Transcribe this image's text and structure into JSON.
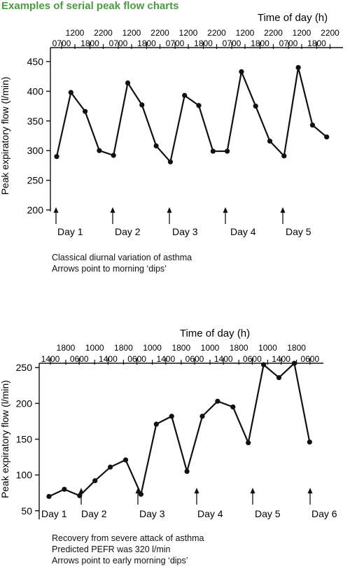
{
  "page_title": "Examples of serial peak flow charts",
  "chart_data": [
    {
      "type": "line",
      "top_axis_title": "Time of day (h)",
      "ylabel": "Peak expiratory flow (l/min)",
      "ylim": [
        200,
        450
      ],
      "yticks": [
        200,
        250,
        300,
        350,
        400,
        450
      ],
      "time_ticks_upper": [
        "1200",
        "2200",
        "1200",
        "2200",
        "1200",
        "2200",
        "1200",
        "2200",
        "1200",
        "2200"
      ],
      "time_ticks_lower": [
        "0700",
        "1800",
        "0700",
        "1800",
        "0700",
        "1800",
        "0700",
        "1800",
        "0700",
        "1800"
      ],
      "values": [
        290,
        398,
        366,
        300,
        292,
        414,
        377,
        308,
        281,
        393,
        376,
        299,
        299,
        433,
        375,
        316,
        291,
        440,
        343,
        323
      ],
      "day_labels": [
        "Day 1",
        "Day 2",
        "Day 3",
        "Day 4",
        "Day 5"
      ],
      "dip_arrow_times_of_day": [
        "0700",
        "0700",
        "0700",
        "0700",
        "0700"
      ],
      "caption": [
        "Classical diurnal variation of asthma",
        "Arrows point to morning ‘dips’"
      ]
    },
    {
      "type": "line",
      "top_axis_title": "Time of day (h)",
      "ylabel": "Peak expiratory flow (l/min)",
      "ylim": [
        40,
        260
      ],
      "yticks": [
        50,
        100,
        150,
        200,
        250
      ],
      "time_ticks_upper": [
        "1800",
        "1000",
        "1800",
        "1000",
        "1800",
        "1000",
        "1800",
        "1000",
        "1800"
      ],
      "time_ticks_lower": [
        "1400",
        "0600",
        "1400",
        "0600",
        "1400",
        "0600",
        "1400",
        "0600",
        "1400",
        "0600"
      ],
      "values": [
        70,
        80,
        71,
        92,
        111,
        121,
        73,
        171,
        182,
        105,
        182,
        203,
        195,
        145,
        254,
        236,
        256,
        146
      ],
      "day_labels": [
        "Day 1",
        "Day 2",
        "Day 3",
        "Day 4",
        "Day 5",
        "Day 6"
      ],
      "dip_arrow_times_of_day": [
        "0600",
        "0600",
        "0600",
        "0600",
        "0600"
      ],
      "caption": [
        "Recovery from severe attack of asthma",
        "Predicted PEFR was 320 l/min",
        "Arrows point to early morning ‘dips’"
      ]
    }
  ]
}
